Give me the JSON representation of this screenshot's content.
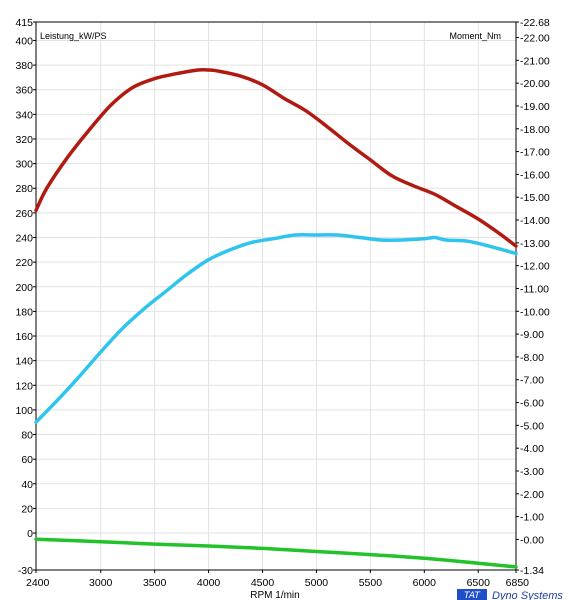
{
  "chart_data": {
    "type": "line",
    "x_axis": {
      "label": "RPM  1/min",
      "range": [
        2400,
        6850
      ],
      "ticks": [
        "2400",
        "3000",
        "3500",
        "4000",
        "4500",
        "5000",
        "5500",
        "6000",
        "6500",
        "6850"
      ],
      "tick_values": [
        2400,
        3000,
        3500,
        4000,
        4500,
        5000,
        5500,
        6000,
        6500,
        6850
      ]
    },
    "y_left": {
      "label": "Leistung_kW/PS",
      "range": [
        -30,
        415
      ],
      "ticks": [
        "415",
        "400",
        "380",
        "360",
        "340",
        "320",
        "300",
        "280",
        "260",
        "240",
        "220",
        "200",
        "180",
        "160",
        "140",
        "120",
        "100",
        "80",
        "60",
        "40",
        "20",
        "0",
        "-30"
      ],
      "tick_values": [
        415,
        400,
        380,
        360,
        340,
        320,
        300,
        280,
        260,
        240,
        220,
        200,
        180,
        160,
        140,
        120,
        100,
        80,
        60,
        40,
        20,
        0,
        -30
      ]
    },
    "y_right": {
      "label": "Moment_Nm",
      "range": [
        -1.34,
        22.68
      ],
      "ticks": [
        "-22.68",
        "-22.00",
        "-21.00",
        "-20.00",
        "-19.00",
        "-18.00",
        "-17.00",
        "-16.00",
        "-15.00",
        "-14.00",
        "-13.00",
        "-12.00",
        "-11.00",
        "-10.00",
        "-9.00",
        "-8.00",
        "-7.00",
        "-6.00",
        "-5.00",
        "-4.00",
        "-3.00",
        "-2.00",
        "-1.00",
        "-0.00",
        "-1.34"
      ],
      "tick_values": [
        22.68,
        22,
        21,
        20,
        19,
        18,
        17,
        16,
        15,
        14,
        13,
        12,
        11,
        10,
        9,
        8,
        7,
        6,
        5,
        4,
        3,
        2,
        1,
        0,
        -1.34
      ]
    },
    "grid": true,
    "series": [
      {
        "axis": "left",
        "color": "#b01a10",
        "x": [
          2400,
          2500,
          2700,
          2900,
          3100,
          3300,
          3500,
          3700,
          3900,
          4000,
          4100,
          4300,
          4500,
          4700,
          4900,
          5100,
          5300,
          5500,
          5700,
          5900,
          6100,
          6300,
          6500,
          6700,
          6850
        ],
        "values": [
          262,
          280,
          306,
          328,
          348,
          362,
          369,
          373,
          376,
          376,
          375,
          371,
          364,
          353,
          343,
          330,
          316,
          303,
          290,
          282,
          275,
          265,
          255,
          243,
          233
        ]
      },
      {
        "axis": "left",
        "color": "#2ec4ee",
        "x": [
          2400,
          2600,
          2800,
          3000,
          3200,
          3400,
          3600,
          3800,
          4000,
          4200,
          4400,
          4600,
          4800,
          5000,
          5200,
          5400,
          5600,
          5800,
          6000,
          6100,
          6200,
          6400,
          6600,
          6850
        ],
        "values": [
          90,
          108,
          127,
          147,
          166,
          182,
          196,
          210,
          222,
          230,
          236,
          239,
          242,
          242,
          242,
          240,
          238,
          238,
          239,
          240,
          238,
          237,
          233,
          227
        ]
      },
      {
        "axis": "left",
        "color": "#22c22a",
        "x": [
          2400,
          3000,
          3500,
          4000,
          4500,
          5000,
          5500,
          6000,
          6500,
          6850
        ],
        "values": [
          -5,
          -7,
          -9,
          -10.5,
          -12.5,
          -15,
          -17.5,
          -20.5,
          -24.5,
          -27.5
        ]
      }
    ]
  },
  "branding": {
    "logo_text": "TAT",
    "text": "Dyno Systems"
  },
  "colors": {
    "grid": "#e2e2e2",
    "axis": "#000000",
    "background": "#ffffff"
  }
}
